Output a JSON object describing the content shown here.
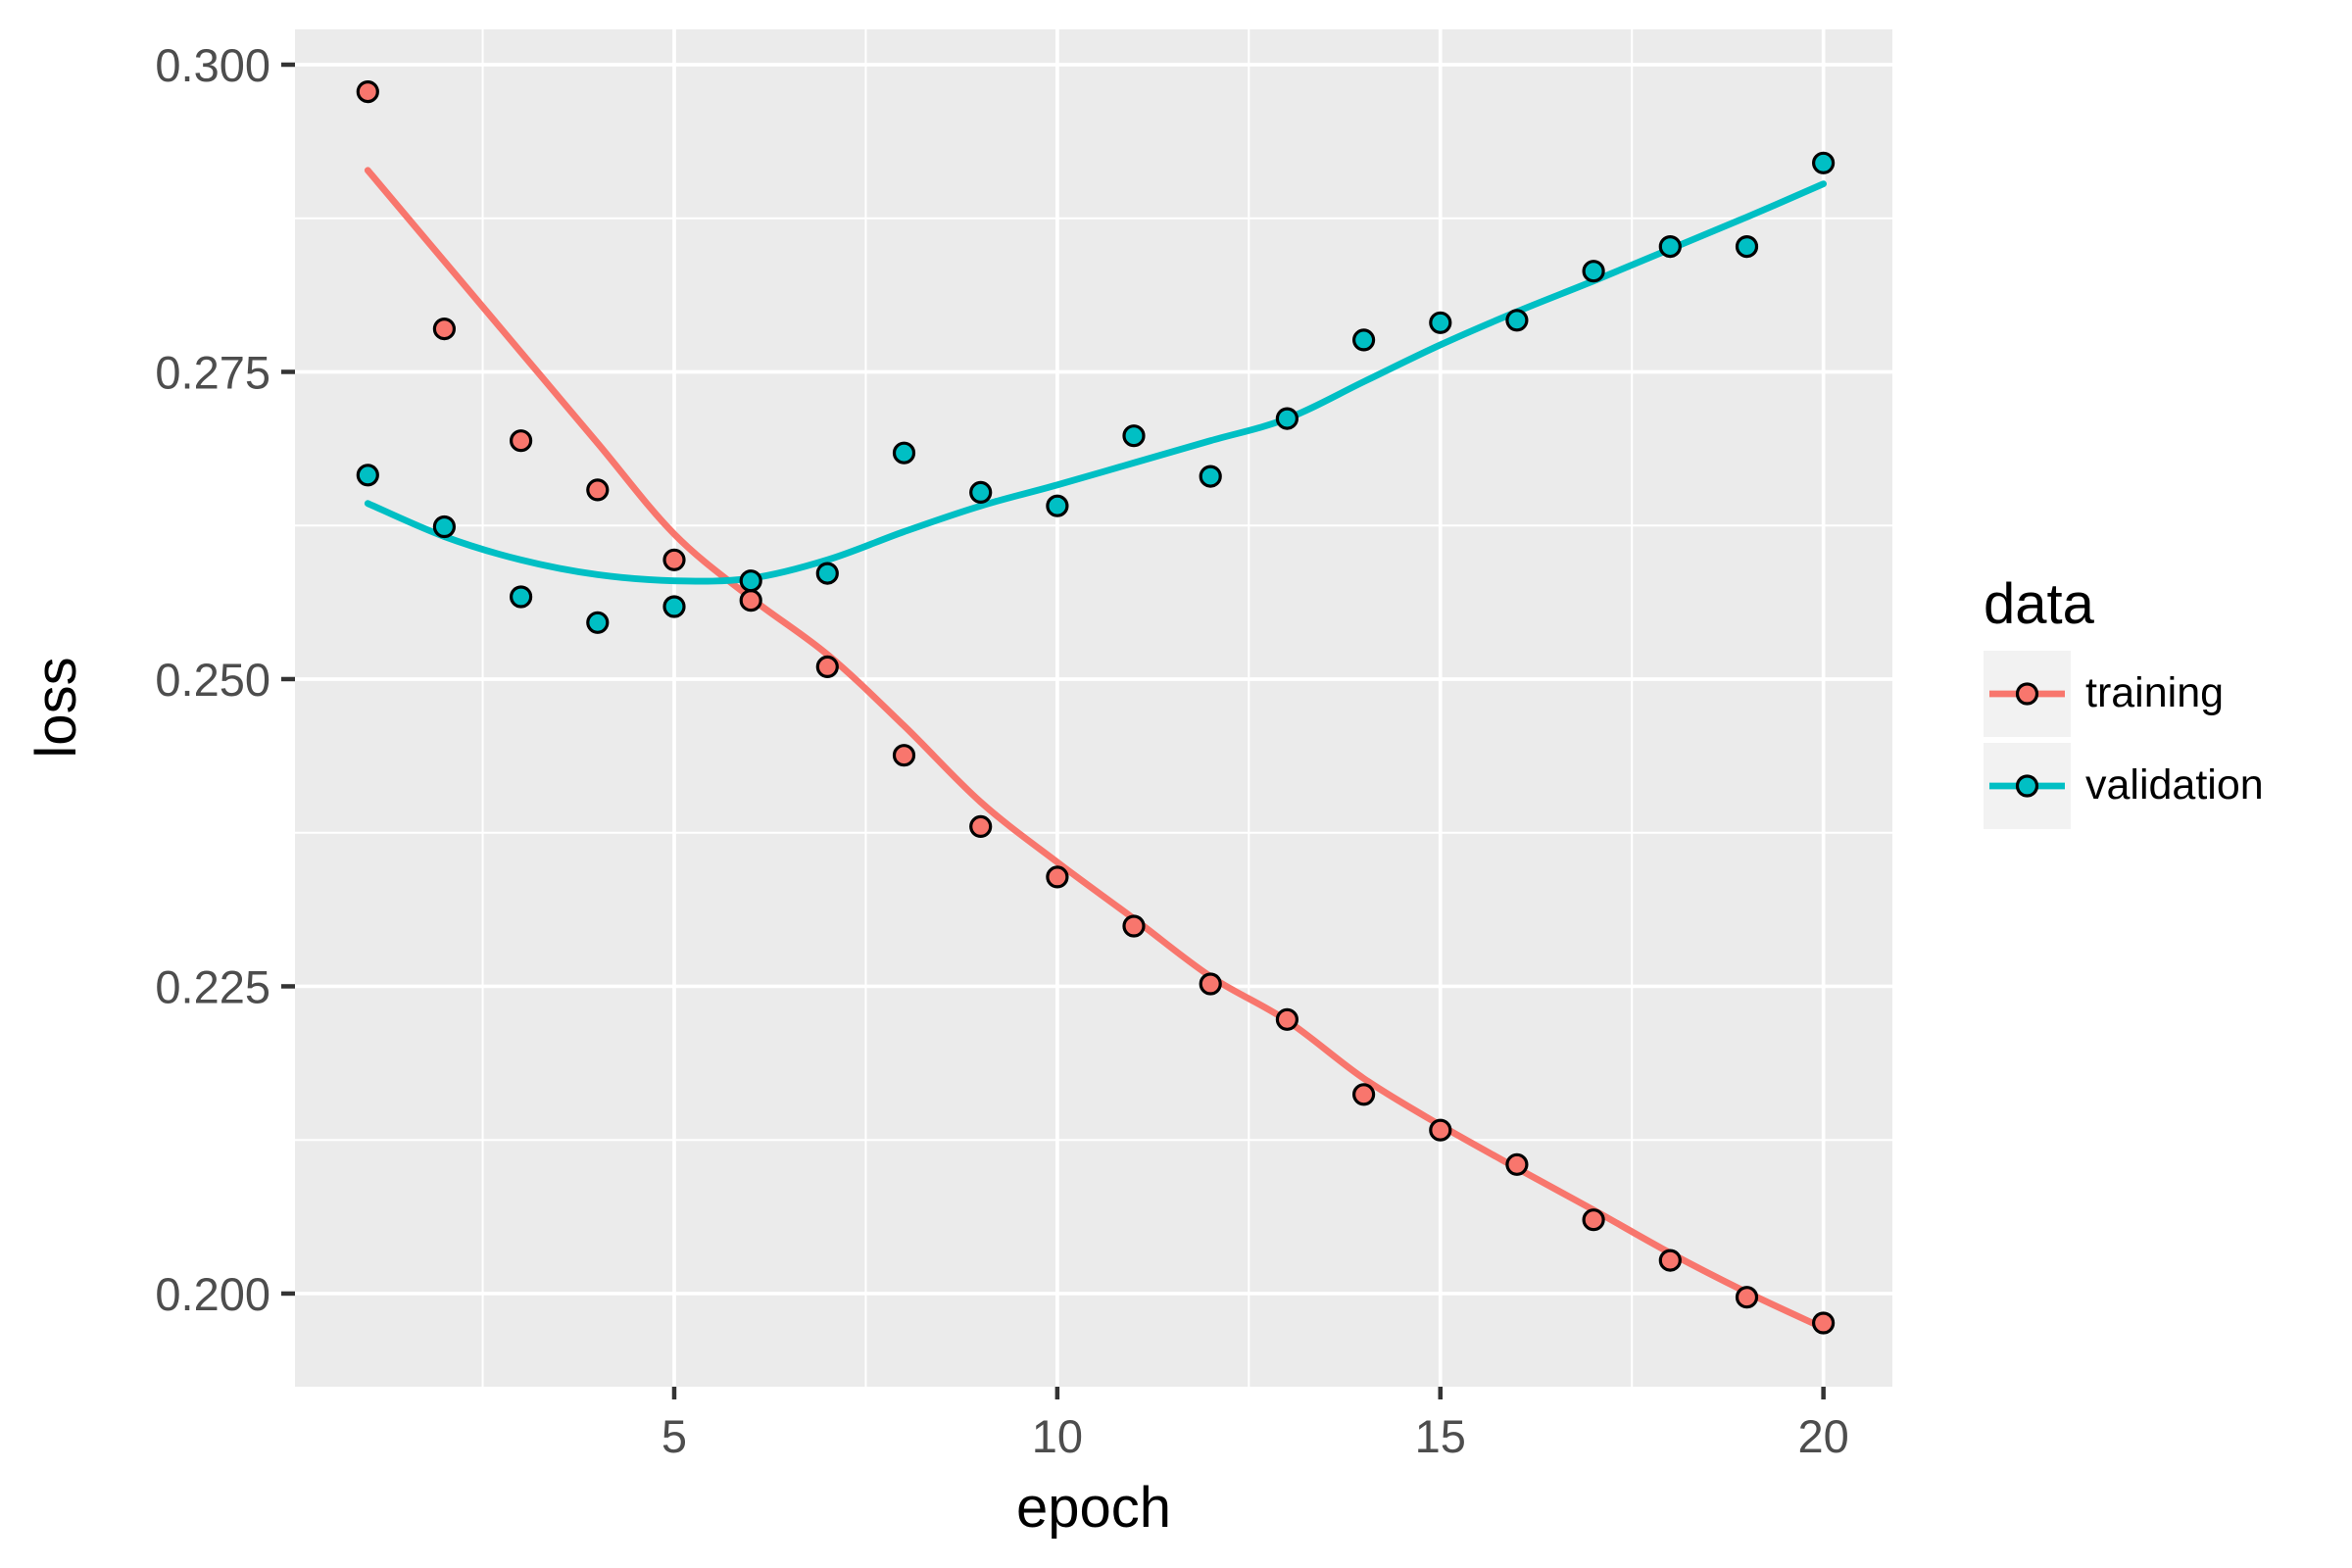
{
  "chart_data": {
    "type": "scatter",
    "xlabel": "epoch",
    "ylabel": "loss",
    "xlim": [
      0.05,
      20.9
    ],
    "ylim": [
      0.19242,
      0.30287
    ],
    "grid": true,
    "legend": {
      "title": "data",
      "position": "right"
    },
    "x": [
      1,
      2,
      3,
      4,
      5,
      6,
      7,
      8,
      9,
      10,
      11,
      12,
      13,
      14,
      15,
      16,
      17,
      18,
      19,
      20
    ],
    "x_ticks": {
      "major": [
        5,
        10,
        15,
        20
      ],
      "major_labels": [
        "5",
        "10",
        "15",
        "20"
      ],
      "minor": [
        2.5,
        7.5,
        12.5,
        17.5
      ]
    },
    "y_ticks": {
      "major": [
        0.3,
        0.275,
        0.25,
        0.225,
        0.2
      ],
      "major_labels": [
        "0.300",
        "0.275",
        "0.250",
        "0.225",
        "0.200"
      ],
      "minor": [
        0.2875,
        0.2625,
        0.2375,
        0.2125
      ]
    },
    "series": [
      {
        "name": "training",
        "color": "#F8766D",
        "points": [
          0.2978,
          0.2785,
          0.2694,
          0.2654,
          0.2597,
          0.2564,
          0.251,
          0.2438,
          0.238,
          0.2339,
          0.2299,
          0.2252,
          0.2223,
          0.2162,
          0.2133,
          0.2105,
          0.206,
          0.2027,
          0.1997,
          0.1976
        ],
        "smooth_line": [
          0.2914,
          0.284,
          0.2766,
          0.2692,
          0.2618,
          0.2566,
          0.252,
          0.2462,
          0.24,
          0.2351,
          0.2305,
          0.2258,
          0.2222,
          0.2175,
          0.2137,
          0.2102,
          0.2068,
          0.2033,
          0.2001,
          0.1972
        ]
      },
      {
        "name": "validation",
        "color": "#00BFC4",
        "points": [
          0.2666,
          0.2624,
          0.2567,
          0.2546,
          0.2559,
          0.258,
          0.2586,
          0.2684,
          0.2652,
          0.2641,
          0.2698,
          0.2665,
          0.2712,
          0.2776,
          0.279,
          0.2792,
          0.2832,
          0.2852,
          0.2852,
          0.292
        ],
        "smooth_line": [
          0.2643,
          0.2616,
          0.2597,
          0.2585,
          0.258,
          0.2582,
          0.2597,
          0.262,
          0.2641,
          0.2658,
          0.2676,
          0.2694,
          0.2712,
          0.2742,
          0.2772,
          0.2799,
          0.2824,
          0.285,
          0.2876,
          0.2903
        ]
      }
    ],
    "style": {
      "panel_bg": "#EBEBEB",
      "grid_color": "#FFFFFF",
      "tick_color": "#333333",
      "tick_label_color": "#4D4D4D",
      "point_stroke": "#000000",
      "legend_key_bg": "#F2F2F2"
    }
  }
}
